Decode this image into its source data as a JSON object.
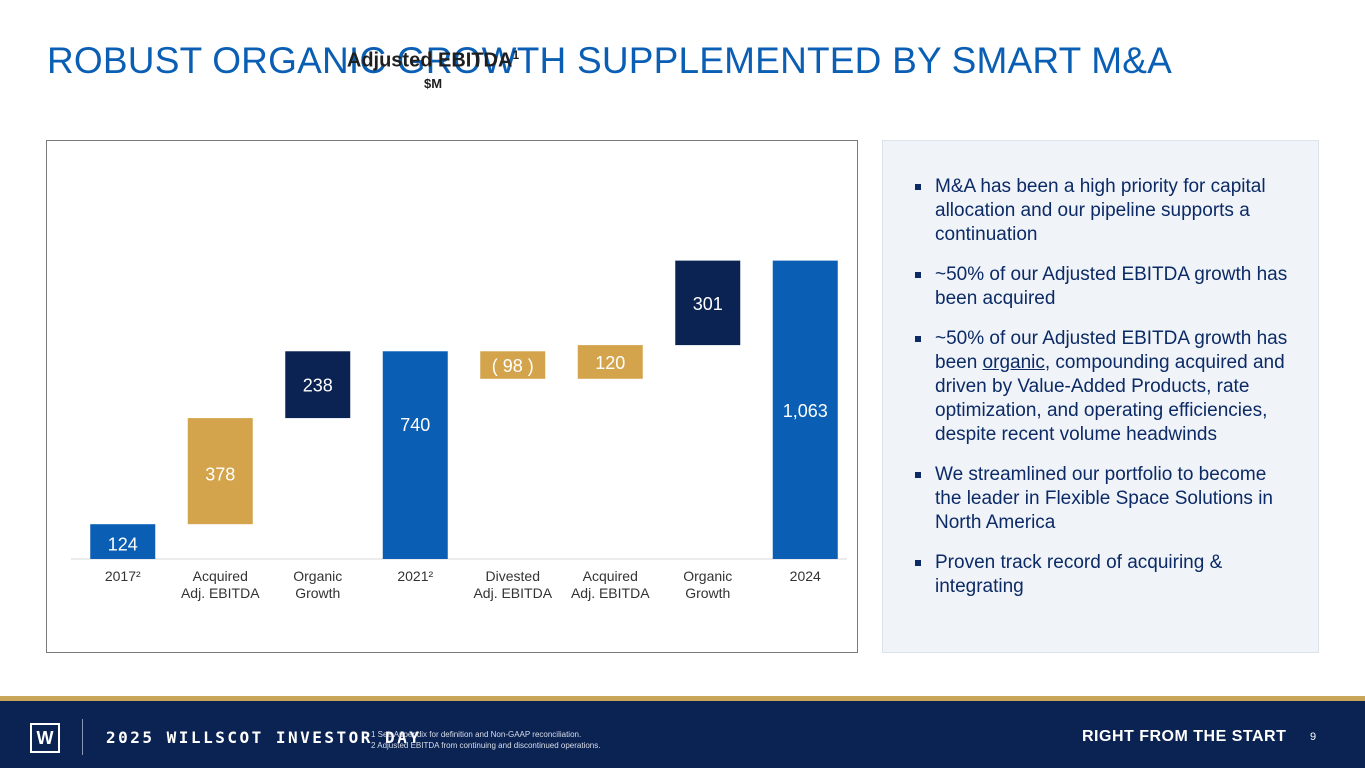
{
  "title": "ROBUST ORGANIC GROWTH SUPPLEMENTED BY SMART M&A",
  "chart_data": {
    "type": "bar",
    "subtype": "waterfall",
    "title": "Adjusted EBITDA",
    "title_superscript": "1",
    "subtitle": "$M",
    "ylim": [
      0,
      1100
    ],
    "grid": false,
    "legend": "none",
    "categories": [
      "2017²|",
      "Acquired|Adj. EBITDA",
      "Organic|Growth",
      "2021²|",
      "Divested|Adj. EBITDA",
      "Acquired|Adj. EBITDA",
      "Organic|Growth",
      "2024|"
    ],
    "bars": [
      {
        "label": "124",
        "start": 0,
        "end": 124,
        "kind": "total"
      },
      {
        "label": "378",
        "start": 124,
        "end": 502,
        "kind": "acquired"
      },
      {
        "label": "238",
        "start": 502,
        "end": 740,
        "kind": "organic"
      },
      {
        "label": "740",
        "start": 0,
        "end": 740,
        "kind": "total"
      },
      {
        "label": "( 98 )",
        "start": 642,
        "end": 740,
        "kind": "acquired"
      },
      {
        "label": "120",
        "start": 642,
        "end": 762,
        "kind": "acquired"
      },
      {
        "label": "301",
        "start": 762,
        "end": 1063,
        "kind": "organic"
      },
      {
        "label": "1,063",
        "start": 0,
        "end": 1063,
        "kind": "total"
      }
    ],
    "colors": {
      "total": "#0a5fb4",
      "acquired": "#d4a44c",
      "organic": "#0b2352"
    }
  },
  "panel": {
    "bullets": [
      {
        "pre": "M&A has been a high priority for capital allocation and our pipeline supports a continuation",
        "ul": "",
        "post": ""
      },
      {
        "pre": "~50% of our Adjusted EBITDA growth has been acquired",
        "ul": "",
        "post": ""
      },
      {
        "pre": "~50% of our Adjusted EBITDA growth has been ",
        "ul": "organic",
        "post": ", compounding acquired and driven by Value-Added Products, rate optimization, and operating efficiencies, despite recent volume headwinds"
      },
      {
        "pre": "We streamlined our portfolio to become the leader in Flexible Space Solutions in North America",
        "ul": "",
        "post": ""
      },
      {
        "pre": "Proven track record of acquiring & integrating",
        "ul": "",
        "post": ""
      }
    ]
  },
  "footer": {
    "logo": "W",
    "event": "2025 WILLSCOT INVESTOR DAY",
    "note1": "1 See Appendix for definition and Non-GAAP reconciliation.",
    "note2": "2 Adjusted EBITDA from continuing and discontinued operations.",
    "tagline": "RIGHT FROM THE START",
    "page": "9"
  }
}
